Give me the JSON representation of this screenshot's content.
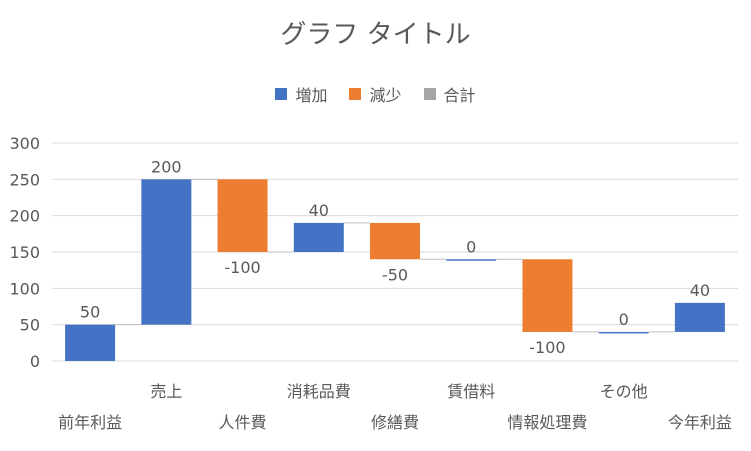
{
  "chart_data": {
    "type": "waterfall",
    "title": "グラフ タイトル",
    "ylim": [
      0,
      300
    ],
    "yticks": [
      0,
      50,
      100,
      150,
      200,
      250,
      300
    ],
    "grid": true,
    "legend_position": "top",
    "legend": [
      {
        "label": "増加",
        "color": "#4472C4"
      },
      {
        "label": "減少",
        "color": "#ED7D31"
      },
      {
        "label": "合計",
        "color": "#A5A5A5"
      }
    ],
    "categories": [
      "前年利益",
      "売上",
      "人件費",
      "消耗品費",
      "修繕費",
      "賃借料",
      "情報処理費",
      "その他",
      "今年利益"
    ],
    "bars": [
      {
        "category": "前年利益",
        "start": 0,
        "end": 50,
        "type": "increase",
        "label": "50"
      },
      {
        "category": "売上",
        "start": 50,
        "end": 250,
        "type": "increase",
        "label": "200"
      },
      {
        "category": "人件費",
        "start": 250,
        "end": 150,
        "type": "decrease",
        "label": "-100"
      },
      {
        "category": "消耗品費",
        "start": 150,
        "end": 190,
        "type": "increase",
        "label": "40"
      },
      {
        "category": "修繕費",
        "start": 190,
        "end": 140,
        "type": "decrease",
        "label": "-50"
      },
      {
        "category": "賃借料",
        "start": 140,
        "end": 140,
        "type": "increase",
        "label": "0"
      },
      {
        "category": "情報処理費",
        "start": 140,
        "end": 40,
        "type": "decrease",
        "label": "-100"
      },
      {
        "category": "その他",
        "start": 40,
        "end": 40,
        "type": "increase",
        "label": "0"
      },
      {
        "category": "今年利益",
        "start": 40,
        "end": 80,
        "type": "increase",
        "label": "40"
      }
    ],
    "colors": {
      "increase": "#4472C4",
      "decrease": "#ED7D31",
      "total": "#A5A5A5",
      "grid": "#D9D9D9",
      "text": "#595959"
    }
  }
}
